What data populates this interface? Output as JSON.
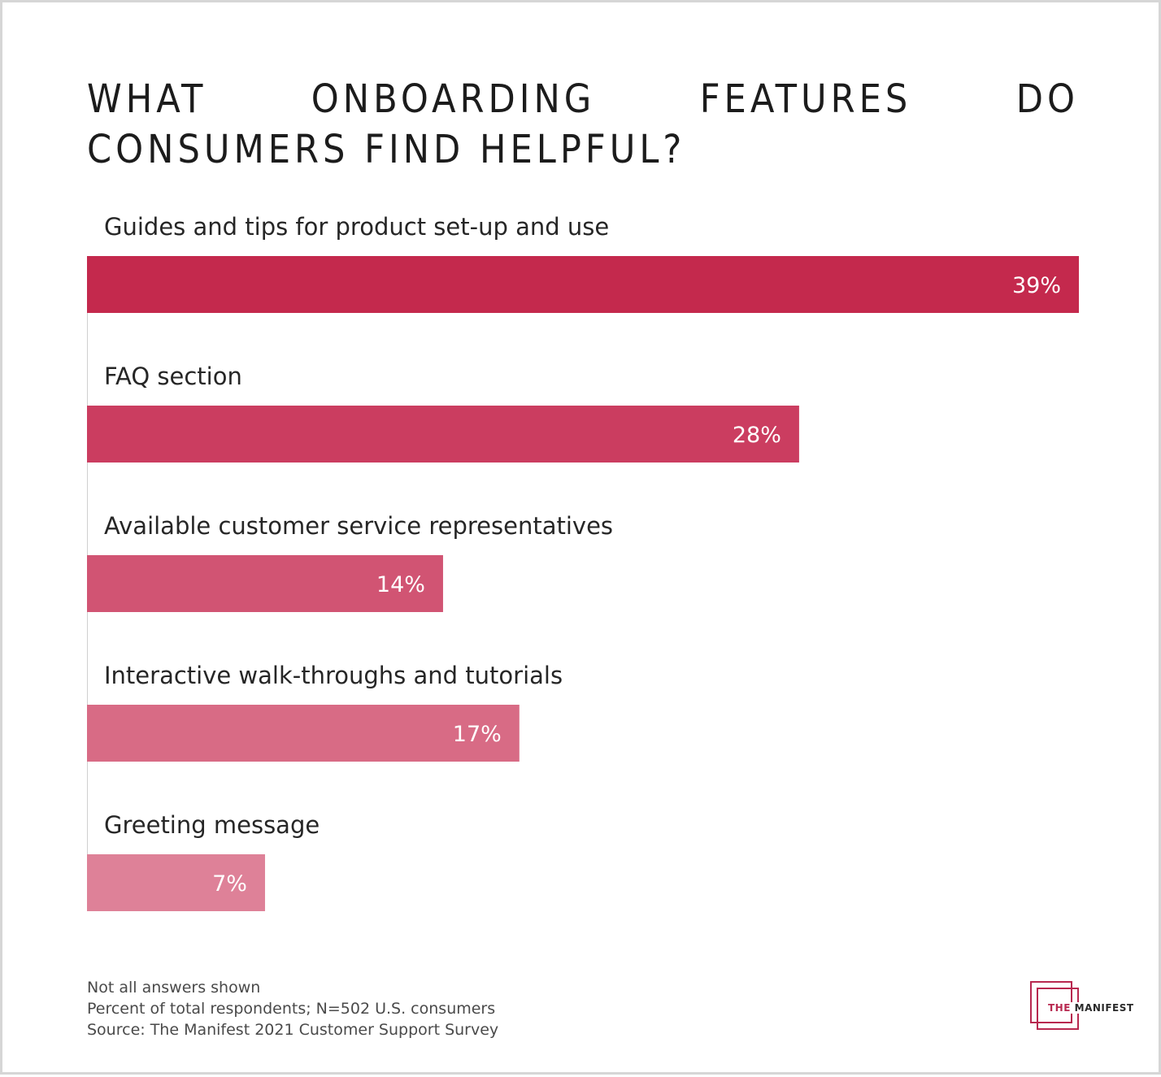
{
  "chart_data": {
    "type": "bar",
    "orientation": "horizontal",
    "title": "What onboarding features do consumers find helpful?",
    "categories": [
      "Guides and tips for product set-up and use",
      "FAQ section",
      "Available customer service representatives",
      "Interactive walk-throughs and tutorials",
      "Greeting message"
    ],
    "values": [
      39,
      28,
      14,
      17,
      7
    ],
    "value_labels": [
      "39%",
      "28%",
      "14%",
      "17%",
      "7%"
    ],
    "xlim": [
      0,
      39
    ],
    "grid": false,
    "legend": "none",
    "colors": [
      "#c4294d",
      "#cb3d60",
      "#d15473",
      "#d86b85",
      "#de8198"
    ]
  },
  "notes": [
    "Not all answers shown",
    "Percent of total respondents; N=502 U.S. consumers",
    "Source: The Manifest 2021 Customer Support Survey"
  ],
  "brand": {
    "part1": "THE",
    "part2": "MANIFEST",
    "color": "#b8284f"
  }
}
